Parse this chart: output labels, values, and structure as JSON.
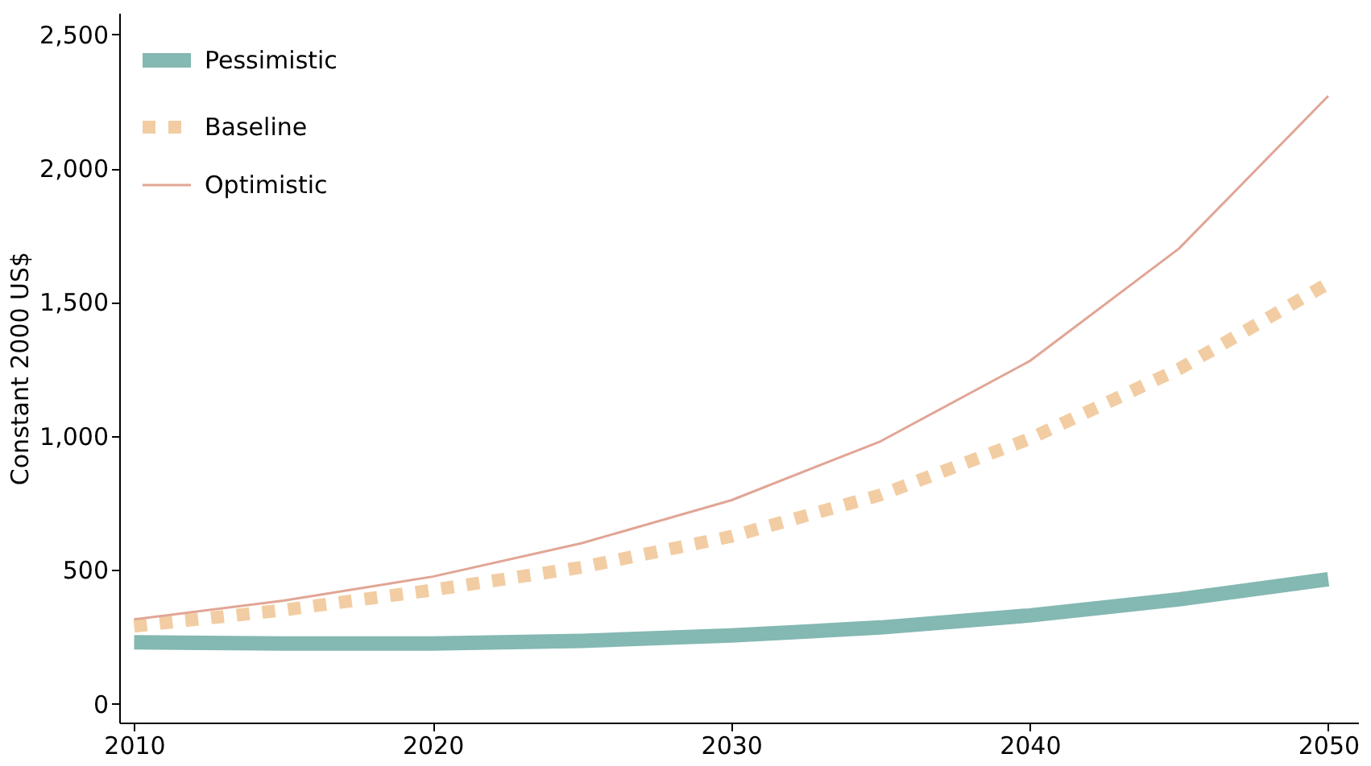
{
  "chart_data": {
    "type": "line",
    "ylabel": "Constant 2000 US$",
    "x": [
      2010,
      2015,
      2020,
      2025,
      2030,
      2035,
      2040,
      2045,
      2050
    ],
    "series": [
      {
        "name": "Pessimistic",
        "color": "#84b8b2",
        "line_style": "solid",
        "values": [
          230,
          225,
          225,
          235,
          255,
          285,
          330,
          390,
          465
        ]
      },
      {
        "name": "Baseline",
        "color": "#f2cda3",
        "line_style": "dotted",
        "values": [
          290,
          350,
          425,
          510,
          625,
          780,
          990,
          1250,
          1570
        ]
      },
      {
        "name": "Optimistic",
        "color": "#e1a595",
        "line_style": "solid",
        "values": [
          315,
          385,
          475,
          600,
          760,
          980,
          1280,
          1700,
          2270
        ]
      }
    ],
    "xlim": [
      2009.5,
      2051
    ],
    "xticks": [
      2010,
      2020,
      2030,
      2040,
      2050
    ],
    "ylim": [
      -70,
      2580
    ],
    "yticks": [
      0,
      500,
      {
        "value": 1000,
        "label": "1,000"
      },
      {
        "value": 1500,
        "label": "1,500"
      },
      {
        "value": 2000,
        "label": "2,000"
      },
      {
        "value": 2500,
        "label": "2,500"
      }
    ],
    "grid": false,
    "legend": "top left",
    "marker": "none"
  }
}
